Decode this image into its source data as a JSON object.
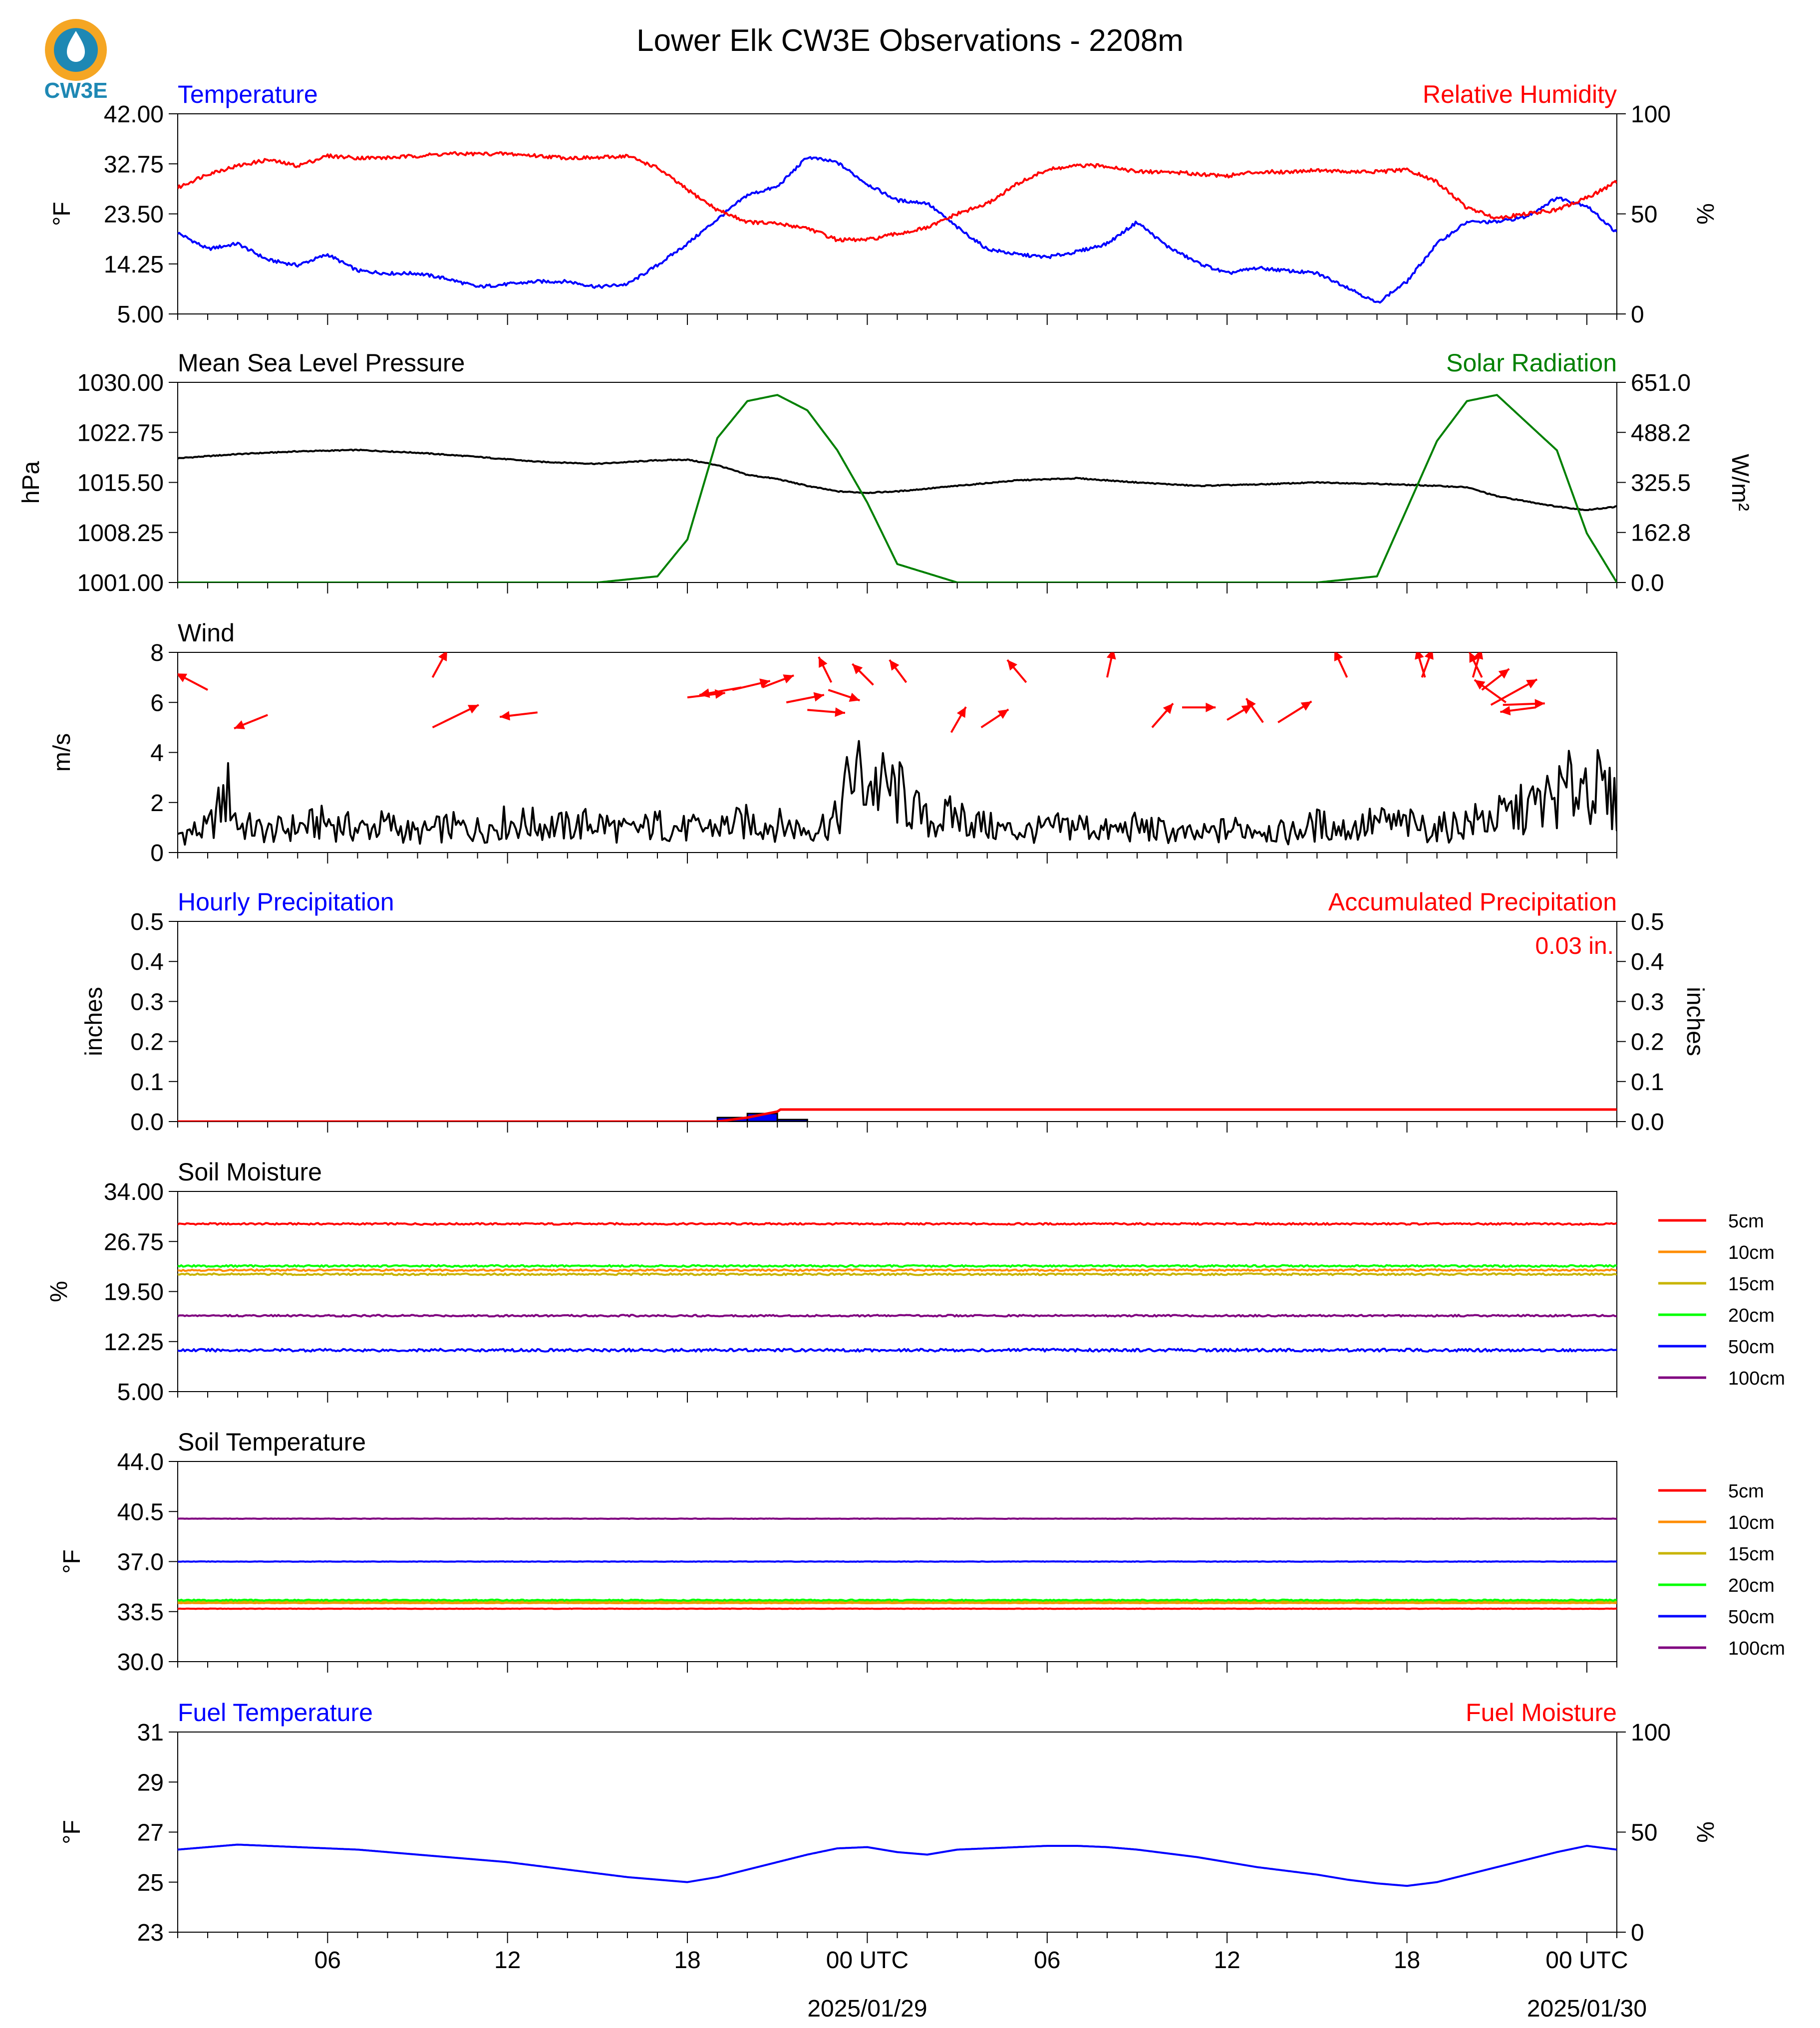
{
  "title": "Lower Elk CW3E Observations - 2208m",
  "logo": {
    "text": "CW3E",
    "color": "#1e88b4",
    "accent": "#f5a623"
  },
  "colors": {
    "blue": "#0000ff",
    "red": "#ff0000",
    "green": "#008000",
    "black": "#000000"
  },
  "x_axis": {
    "ticks": [
      "06",
      "12",
      "18",
      "00 UTC",
      "06",
      "12",
      "18",
      "00 UTC"
    ],
    "dates": [
      "2025/01/29",
      "2025/01/30"
    ]
  },
  "chart_data": [
    {
      "type": "line",
      "title_left": "Temperature",
      "title_right": "Relative Humidity",
      "ylabel_left": "$^\\circ$F",
      "ylabel_right": "%",
      "ylim_left": [
        5.0,
        42.0
      ],
      "ylim_right": [
        0,
        100
      ],
      "yticks_left": [
        "5.00",
        "14.25",
        "23.50",
        "32.75",
        "42.00"
      ],
      "yticks_right": [
        "0",
        "50",
        "100"
      ],
      "x_hours": [
        0,
        1,
        2,
        3,
        4,
        5,
        6,
        7,
        8,
        9,
        10,
        11,
        12,
        13,
        14,
        15,
        16,
        17,
        18,
        19,
        20,
        21,
        22,
        23,
        24,
        25,
        26,
        27,
        28,
        29,
        30,
        31,
        32,
        33,
        34,
        35,
        36,
        37,
        38,
        39,
        40,
        41,
        42,
        43,
        44,
        45,
        46,
        47,
        48
      ],
      "series": [
        {
          "name": "Temperature",
          "axis": "left",
          "color": "#0000ff",
          "values": [
            20,
            17,
            18,
            15,
            14,
            16,
            13,
            12.5,
            12.5,
            11.5,
            10,
            10.5,
            11,
            11,
            10,
            10.5,
            14,
            18,
            22.5,
            27,
            28.5,
            34,
            33,
            29,
            26,
            25.5,
            21,
            17,
            16,
            15.5,
            16.5,
            18,
            22,
            17.5,
            14.5,
            12.5,
            13.5,
            13,
            12.5,
            10,
            7,
            11,
            18,
            22,
            22,
            23,
            26.5,
            25,
            20
          ]
        },
        {
          "name": "Relative Humidity",
          "axis": "right",
          "color": "#ff0000",
          "values": [
            63,
            70,
            74,
            77,
            74,
            79,
            78,
            78,
            79,
            80,
            80,
            80,
            79,
            78,
            78,
            79,
            73,
            62,
            52,
            46,
            45,
            43,
            37,
            37,
            40,
            43,
            50,
            55,
            65,
            72,
            74,
            74,
            71,
            71,
            70,
            69,
            71,
            71,
            72,
            71,
            71,
            72,
            66,
            53,
            48,
            50,
            52,
            58,
            66
          ]
        }
      ]
    },
    {
      "type": "line",
      "title_left": "Mean Sea Level Pressure",
      "title_right": "Solar Radiation",
      "ylabel_left": "hPa",
      "ylabel_right": "W/m²",
      "ylim_left": [
        1001.0,
        1030.0
      ],
      "ylim_right": [
        0.0,
        651.0
      ],
      "yticks_left": [
        "1001.00",
        "1008.25",
        "1015.50",
        "1022.75",
        "1030.00"
      ],
      "yticks_right": [
        "0.0",
        "162.8",
        "325.5",
        "488.2",
        "651.0"
      ],
      "x_hours": [
        0,
        2,
        4,
        6,
        8,
        10,
        12,
        14,
        16,
        17,
        18,
        19,
        20,
        21,
        22,
        23,
        24,
        26,
        28,
        30,
        32,
        34,
        36,
        38,
        40,
        42,
        43,
        44,
        46,
        47,
        48
      ],
      "series": [
        {
          "name": "Mean Sea Level Pressure",
          "axis": "left",
          "color": "#000000",
          "values": [
            1019,
            1019.6,
            1020,
            1020.2,
            1019.8,
            1019.2,
            1018.5,
            1018.2,
            1018.7,
            1018.8,
            1018.0,
            1016.6,
            1016.0,
            1015.0,
            1014.2,
            1014.0,
            1014.2,
            1015.0,
            1015.8,
            1016.1,
            1015.5,
            1015.0,
            1015.2,
            1015.5,
            1015.3,
            1015.0,
            1014.8,
            1013.5,
            1012.0,
            1011.5,
            1012.0
          ]
        },
        {
          "name": "Solar Radiation",
          "axis": "right",
          "color": "#008000",
          "values": [
            0,
            0,
            0,
            0,
            0,
            0,
            0,
            0,
            20,
            140,
            470,
            590,
            610,
            560,
            430,
            260,
            60,
            0,
            0,
            0,
            0,
            0,
            0,
            0,
            20,
            460,
            590,
            610,
            430,
            160,
            0
          ]
        }
      ]
    },
    {
      "type": "line",
      "title_left": "Wind",
      "ylabel_left": "m/s",
      "ylim_left": [
        0,
        8
      ],
      "yticks_left": [
        "0",
        "2",
        "4",
        "6",
        "8"
      ],
      "x_hours": [
        0,
        1,
        1.7,
        2,
        3,
        4,
        5,
        6,
        7,
        8,
        9,
        10,
        11,
        12,
        13,
        14,
        15,
        16,
        17,
        18,
        19,
        20,
        21,
        22,
        22.5,
        23,
        24,
        25,
        26,
        27,
        28,
        29,
        30,
        31,
        32,
        33,
        34,
        35,
        36,
        37,
        38,
        39,
        40,
        41,
        42,
        43,
        44,
        45,
        46,
        47,
        48
      ],
      "series": [
        {
          "name": "Wind speed",
          "color": "#000000",
          "values": [
            0.8,
            1.0,
            2.6,
            1.2,
            0.9,
            1.1,
            1.3,
            1.0,
            1.2,
            0.8,
            1.1,
            1.0,
            1.3,
            1.2,
            1.1,
            1.3,
            0.9,
            1.2,
            1.0,
            1.1,
            1.3,
            1.2,
            1.0,
            1.4,
            3.5,
            3.0,
            2.6,
            1.3,
            1.6,
            1.1,
            0.9,
            1.0,
            1.2,
            0.9,
            1.1,
            0.9,
            0.7,
            1.0,
            1.1,
            0.8,
            1.2,
            1.0,
            1.3,
            1.2,
            1.0,
            1.3,
            1.5,
            1.9,
            2.4,
            3.2,
            2.0
          ]
        }
      ],
      "barbs": [
        {
          "h": 1,
          "y": 6.5,
          "dx": -1.5,
          "dy": 1.1
        },
        {
          "h": 3,
          "y": 5.5,
          "dx": -1.6,
          "dy": -0.9
        },
        {
          "h": 8.5,
          "y": 7.0,
          "dx": 0.7,
          "dy": 1.8
        },
        {
          "h": 8.5,
          "y": 5.0,
          "dx": 2.2,
          "dy": 1.5
        },
        {
          "h": 12,
          "y": 5.6,
          "dx": -1.8,
          "dy": -0.3
        },
        {
          "h": 17,
          "y": 6.2,
          "dx": 1.8,
          "dy": 0.3
        },
        {
          "h": 18.8,
          "y": 6.6,
          "dx": -2.0,
          "dy": -0.5
        },
        {
          "h": 18.5,
          "y": 6.5,
          "dx": 1.8,
          "dy": 0.6
        },
        {
          "h": 19.5,
          "y": 6.6,
          "dx": 1.5,
          "dy": 0.8
        },
        {
          "h": 20.3,
          "y": 6.0,
          "dx": 1.8,
          "dy": 0.5
        },
        {
          "h": 21,
          "y": 5.7,
          "dx": 1.8,
          "dy": -0.2
        },
        {
          "h": 21.8,
          "y": 6.8,
          "dx": -0.6,
          "dy": 1.7
        },
        {
          "h": 21.7,
          "y": 6.5,
          "dx": 1.5,
          "dy": -0.7
        },
        {
          "h": 23.2,
          "y": 6.7,
          "dx": -1.0,
          "dy": 1.4
        },
        {
          "h": 24.3,
          "y": 6.8,
          "dx": -0.8,
          "dy": 1.5
        },
        {
          "h": 25.8,
          "y": 4.8,
          "dx": 0.7,
          "dy": 1.7
        },
        {
          "h": 26.8,
          "y": 5.0,
          "dx": 1.3,
          "dy": 1.2
        },
        {
          "h": 28.3,
          "y": 6.8,
          "dx": -0.9,
          "dy": 1.5
        },
        {
          "h": 31,
          "y": 7.0,
          "dx": 0.3,
          "dy": 1.9
        },
        {
          "h": 32.5,
          "y": 5.0,
          "dx": 1.0,
          "dy": 1.6
        },
        {
          "h": 33.5,
          "y": 5.8,
          "dx": 1.6,
          "dy": 0.0
        },
        {
          "h": 35,
          "y": 5.3,
          "dx": 1.2,
          "dy": 1.0
        },
        {
          "h": 36.2,
          "y": 5.2,
          "dx": -0.8,
          "dy": 1.6
        },
        {
          "h": 36.7,
          "y": 5.2,
          "dx": 1.6,
          "dy": 1.4
        },
        {
          "h": 39,
          "y": 7.0,
          "dx": -0.6,
          "dy": 1.8
        },
        {
          "h": 41.5,
          "y": 7.0,
          "dx": 0.5,
          "dy": 1.9
        },
        {
          "h": 41.6,
          "y": 7.0,
          "dx": -0.4,
          "dy": 1.9
        },
        {
          "h": 43.2,
          "y": 7.0,
          "dx": 0.4,
          "dy": 1.9
        },
        {
          "h": 43.5,
          "y": 7.0,
          "dx": -0.6,
          "dy": 1.7
        },
        {
          "h": 43.5,
          "y": 6.5,
          "dx": 1.3,
          "dy": 1.4
        },
        {
          "h": 44.3,
          "y": 6.0,
          "dx": -1.5,
          "dy": 1.5
        },
        {
          "h": 43.8,
          "y": 5.9,
          "dx": 2.2,
          "dy": 1.7
        },
        {
          "h": 45.3,
          "y": 5.8,
          "dx": -1.7,
          "dy": -0.3
        },
        {
          "h": 44.2,
          "y": 5.9,
          "dx": 2.0,
          "dy": 0.1
        }
      ]
    },
    {
      "type": "line",
      "title_left": "Hourly Precipitation",
      "title_right": "Accumulated Precipitation",
      "ylabel_left": "inches",
      "ylabel_right": "inches",
      "ylim_left": [
        0.0,
        0.5
      ],
      "ylim_right": [
        0.0,
        0.5
      ],
      "yticks_left": [
        "0.0",
        "0.1",
        "0.2",
        "0.3",
        "0.4",
        "0.5"
      ],
      "yticks_right": [
        "0.0",
        "0.1",
        "0.2",
        "0.3",
        "0.4",
        "0.5"
      ],
      "total_label": "0.03 in.",
      "bars": [
        {
          "h": 18,
          "w": 1,
          "value": 0.01,
          "color": "#0000ff"
        },
        {
          "h": 19,
          "w": 1,
          "value": 0.02,
          "color": "#0000ff"
        },
        {
          "h": 20,
          "w": 1,
          "value": 0.005,
          "color": "#0000ff"
        }
      ],
      "series": [
        {
          "name": "Accumulated Precipitation",
          "axis": "right",
          "color": "#ff0000",
          "x_hours": [
            0,
            18,
            19,
            20,
            20.1,
            48
          ],
          "values": [
            0,
            0,
            0.01,
            0.025,
            0.03,
            0.03
          ]
        }
      ]
    },
    {
      "type": "line",
      "title_left": "Soil Moisture",
      "ylabel_left": "%",
      "ylim_left": [
        5.0,
        34.0
      ],
      "yticks_left": [
        "5.00",
        "12.25",
        "19.50",
        "26.75",
        "34.00"
      ],
      "series": [
        {
          "name": "5cm",
          "color": "#ff0000",
          "value": 29.3
        },
        {
          "name": "10cm",
          "color": "#ff8c00",
          "value": 22.6
        },
        {
          "name": "15cm",
          "color": "#c8b400",
          "value": 22.0
        },
        {
          "name": "20cm",
          "color": "#00ff00",
          "value": 23.2
        },
        {
          "name": "50cm",
          "color": "#0000ff",
          "value": 11.0
        },
        {
          "name": "100cm",
          "color": "#800080",
          "value": 16.0
        }
      ]
    },
    {
      "type": "line",
      "title_left": "Soil Temperature",
      "ylabel_left": "$^\\circ$F",
      "ylim_left": [
        30.0,
        44.0
      ],
      "yticks_left": [
        "30.0",
        "33.5",
        "37.0",
        "40.5",
        "44.0"
      ],
      "series": [
        {
          "name": "5cm",
          "color": "#ff0000",
          "value": 33.7
        },
        {
          "name": "10cm",
          "color": "#ff8c00",
          "value": 34.1
        },
        {
          "name": "15cm",
          "color": "#c8b400",
          "value": 34.2
        },
        {
          "name": "20cm",
          "color": "#00ff00",
          "value": 34.3
        },
        {
          "name": "50cm",
          "color": "#0000ff",
          "value": 37.0
        },
        {
          "name": "100cm",
          "color": "#800080",
          "value": 40.0
        }
      ]
    },
    {
      "type": "line",
      "title_left": "Fuel Temperature",
      "title_right": "Fuel Moisture",
      "ylabel_left": "$^\\circ$F",
      "ylabel_right": "%",
      "ylim_left": [
        23,
        31
      ],
      "ylim_right": [
        0,
        100
      ],
      "yticks_left": [
        "23",
        "25",
        "27",
        "29",
        "31"
      ],
      "yticks_right": [
        "0",
        "50",
        "100"
      ],
      "x_hours": [
        0,
        1,
        2,
        3,
        4,
        5,
        6,
        7,
        8,
        9,
        10,
        11,
        12,
        13,
        14,
        15,
        16,
        17,
        18,
        19,
        20,
        21,
        22,
        23,
        24,
        25,
        26,
        27,
        28,
        29,
        30,
        31,
        32,
        33,
        34,
        35,
        36,
        37,
        38,
        39,
        40,
        41,
        42,
        43,
        44,
        45,
        46,
        47,
        48
      ],
      "series": [
        {
          "name": "Fuel Temperature",
          "axis": "left",
          "color": "#0000ff",
          "values": [
            26.3,
            26.4,
            26.5,
            26.45,
            26.4,
            26.35,
            26.3,
            26.2,
            26.1,
            26.0,
            25.9,
            25.8,
            25.65,
            25.5,
            25.35,
            25.2,
            25.1,
            25.0,
            25.2,
            25.5,
            25.8,
            26.1,
            26.35,
            26.4,
            26.2,
            26.1,
            26.3,
            26.35,
            26.4,
            26.45,
            26.45,
            26.4,
            26.3,
            26.15,
            26.0,
            25.8,
            25.6,
            25.45,
            25.3,
            25.1,
            24.95,
            24.85,
            25.0,
            25.3,
            25.6,
            25.9,
            26.2,
            26.45,
            26.3
          ]
        }
      ]
    }
  ]
}
